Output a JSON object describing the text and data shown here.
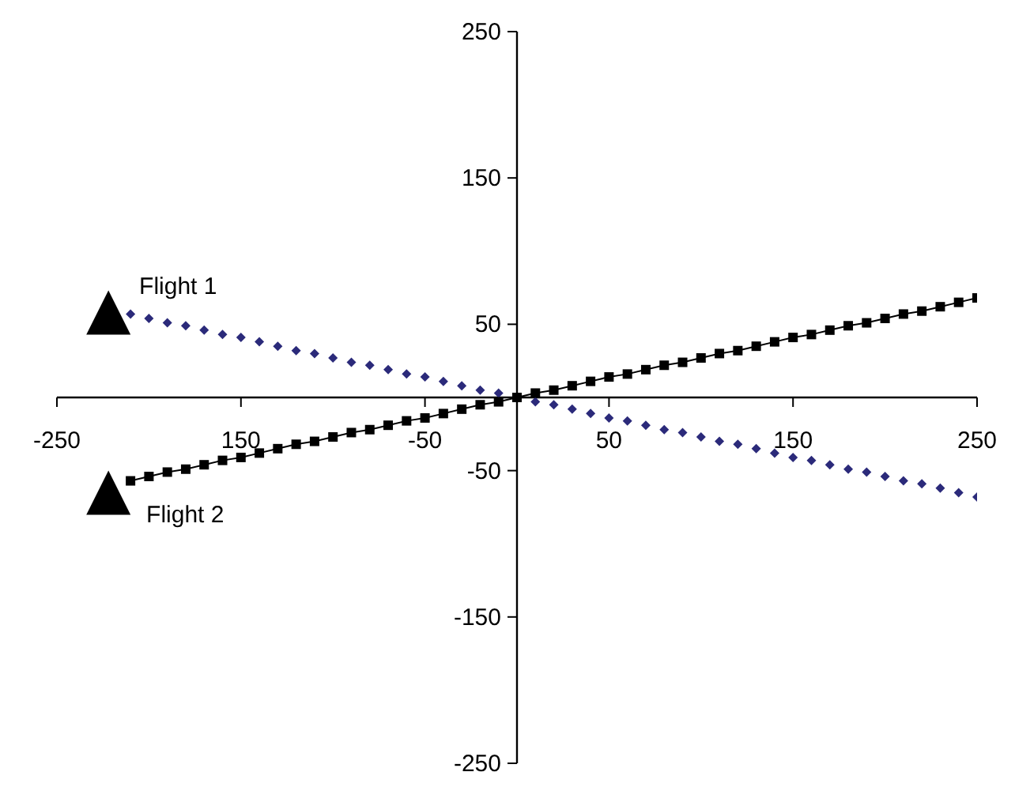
{
  "chart_data": {
    "type": "line",
    "xlim": [
      -250,
      250
    ],
    "xticks": [
      -250,
      {
        "value": -150,
        "label": "150"
      },
      -50,
      50,
      150,
      250
    ],
    "ylim": [
      -250,
      250
    ],
    "yticks": [
      -250,
      -150,
      -50,
      50,
      150,
      250
    ],
    "series": [
      {
        "name": "Flight 1",
        "type": "scatter",
        "marker": "diamond",
        "color": "#2b2a7a",
        "x": [
          -210,
          -200,
          -190,
          -180,
          -170,
          -160,
          -150,
          -140,
          -130,
          -120,
          -110,
          -100,
          -90,
          -80,
          -70,
          -60,
          -50,
          -40,
          -30,
          -20,
          -10,
          0,
          10,
          20,
          30,
          40,
          50,
          60,
          70,
          80,
          90,
          100,
          110,
          120,
          130,
          140,
          150,
          160,
          170,
          180,
          190,
          200,
          210,
          220,
          230,
          240,
          250
        ],
        "values": [
          57,
          54,
          51,
          49,
          46,
          43,
          41,
          38,
          35,
          32,
          30,
          27,
          24,
          22,
          19,
          16,
          14,
          11,
          8,
          5,
          3,
          null,
          -3,
          -5,
          -8,
          -11,
          -14,
          -16,
          -19,
          -22,
          -24,
          -27,
          -30,
          -32,
          -35,
          -38,
          -41,
          -43,
          -46,
          -49,
          -51,
          -54,
          -57,
          -59,
          -62,
          -65,
          -68
        ]
      },
      {
        "name": "Flight 2",
        "marker": "square",
        "color": "#000000",
        "x": [
          -210,
          -200,
          -190,
          -180,
          -170,
          -160,
          -150,
          -140,
          -130,
          -120,
          -110,
          -100,
          -90,
          -80,
          -70,
          -60,
          -50,
          -40,
          -30,
          -20,
          -10,
          0,
          10,
          20,
          30,
          40,
          50,
          60,
          70,
          80,
          90,
          100,
          110,
          120,
          130,
          140,
          150,
          160,
          170,
          180,
          190,
          200,
          210,
          220,
          230,
          240,
          250
        ],
        "values": [
          -57,
          -54,
          -51,
          -49,
          -46,
          -43,
          -41,
          -38,
          -35,
          -32,
          -30,
          -27,
          -24,
          -22,
          -19,
          -16,
          -14,
          -11,
          -8,
          -5,
          -3,
          0,
          3,
          5,
          8,
          11,
          14,
          16,
          19,
          22,
          24,
          27,
          30,
          32,
          35,
          38,
          41,
          43,
          46,
          49,
          51,
          54,
          57,
          59,
          62,
          65,
          68
        ]
      },
      {
        "type": "scatter",
        "marker": "triangle",
        "color": "#000000",
        "x": [
          -222,
          -222
        ],
        "values": [
          58,
          -65
        ]
      }
    ]
  }
}
